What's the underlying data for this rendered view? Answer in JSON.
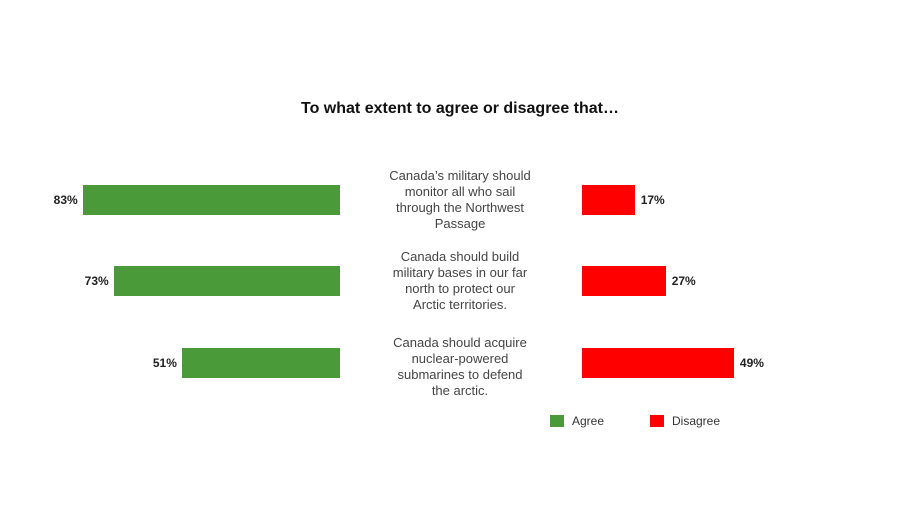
{
  "chart_data": {
    "type": "bar",
    "title": "To what extent to agree or disagree that…",
    "categories": [
      "Canada’s military should monitor all who sail through the Northwest Passage",
      "Canada should build military bases in our far north to protect our Arctic territories.",
      "Canada should acquire nuclear-powered submarines to defend the arctic."
    ],
    "category_lines": [
      [
        "Canada’s military should",
        "monitor all who sail",
        "through the Northwest",
        "Passage"
      ],
      [
        "Canada should build",
        "military bases in our far",
        "north to protect our",
        "Arctic territories."
      ],
      [
        "Canada should acquire",
        "nuclear-powered",
        "submarines to defend",
        "the arctic."
      ]
    ],
    "series": [
      {
        "name": "Agree",
        "values": [
          83,
          73,
          51
        ],
        "labels": [
          "83%",
          "73%",
          "51%"
        ],
        "color": "#4a9a3a"
      },
      {
        "name": "Disagree",
        "values": [
          17,
          27,
          49
        ],
        "labels": [
          "17%",
          "27%",
          "49%"
        ],
        "color": "#ff0000"
      }
    ],
    "xlim": [
      0,
      100
    ],
    "legend_position": "bottom-right",
    "grid": false
  }
}
